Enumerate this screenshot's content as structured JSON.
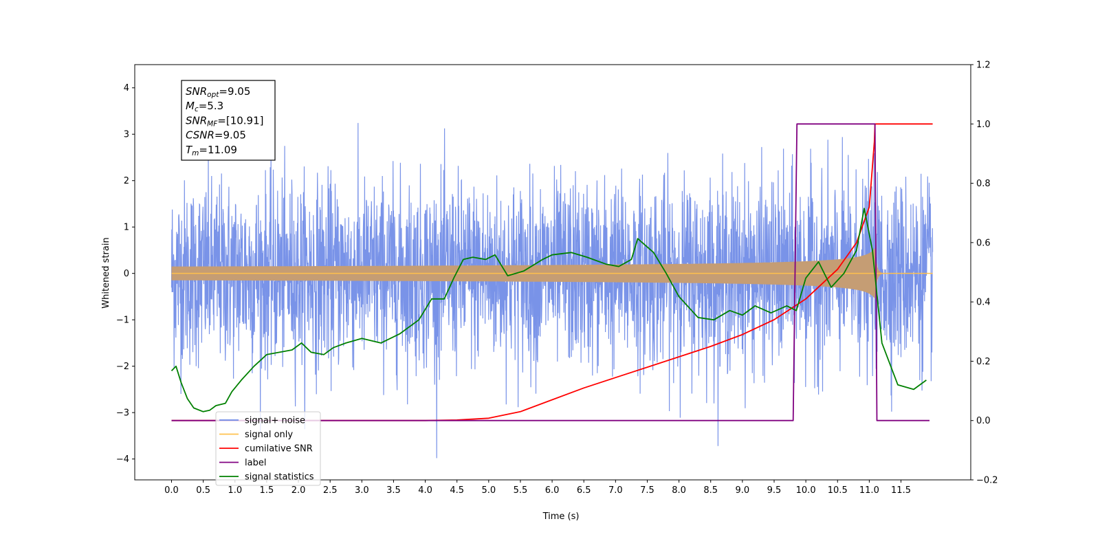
{
  "chart_data": {
    "type": "line",
    "xlabel": "Time (s)",
    "ylabel": "Whitened strain",
    "xlim": [
      -0.58,
      12.6
    ],
    "ylim": [
      -4.45,
      4.5
    ],
    "y2lim": [
      -0.2,
      1.2
    ],
    "x_ticks": [
      0.0,
      0.5,
      1.0,
      1.5,
      2.0,
      2.5,
      3.0,
      3.5,
      4.0,
      4.5,
      5.0,
      5.5,
      6.0,
      6.5,
      7.0,
      7.5,
      8.0,
      8.5,
      9.0,
      9.5,
      10.0,
      10.5,
      11.0,
      11.5
    ],
    "x_tick_labels": [
      "0.0",
      "0.5",
      "1.0",
      "1.5",
      "2.0",
      "2.5",
      "3.0",
      "3.5",
      "4.0",
      "4.5",
      "5.0",
      "5.5",
      "6.0",
      "6.5",
      "7.0",
      "7.5",
      "8.0",
      "8.5",
      "9.0",
      "9.5",
      "10.0",
      "10.5",
      "11.0",
      "11.5"
    ],
    "y_ticks": [
      4,
      3,
      2,
      1,
      0,
      -1,
      -2,
      -3,
      -4
    ],
    "y_tick_labels": [
      "4",
      "3",
      "2",
      "1",
      "0",
      "−1",
      "−2",
      "−3",
      "−4"
    ],
    "y2_ticks": [
      1.2,
      1.0,
      0.8,
      0.6,
      0.4,
      0.2,
      0.0,
      -0.2
    ],
    "y2_tick_labels": [
      "1.2",
      "1.0",
      "0.8",
      "0.6",
      "0.4",
      "0.2",
      "0.0",
      "−0.2"
    ],
    "grid": false,
    "legend_placement": "bottom-left",
    "info_box": {
      "lines": [
        {
          "sym": "SNR",
          "sub": "opt",
          "val": "=9.05"
        },
        {
          "sym": "M",
          "sub": "c",
          "val": "=5.3"
        },
        {
          "sym": "SNR",
          "sub": "MF",
          "val": "=[10.91]"
        },
        {
          "sym": "CSNR",
          "sub": "",
          "val": "=9.05"
        },
        {
          "sym": "T",
          "sub": "m",
          "val": "=11.09"
        }
      ]
    },
    "noise_series": {
      "name": "signal+ noise",
      "color": "#6a87e6",
      "t_start": 0.0,
      "t_end": 12.0,
      "typical_amplitude": 2.2,
      "max": 4.1,
      "min": -4.05
    },
    "signal_envelope": {
      "name": "signal only",
      "color": "#ffc04d",
      "fill_color": "#c59d74",
      "t_start": 0.0,
      "t_merge": 11.09,
      "t_end": 12.0,
      "peak_amplitude": 0.55
    },
    "series": [
      {
        "name": "cumilative SNR",
        "color": "#ff0000",
        "axis": "right",
        "x": [
          0.0,
          3.0,
          4.0,
          4.5,
          5.0,
          5.5,
          6.0,
          6.5,
          7.0,
          7.5,
          8.0,
          8.5,
          9.0,
          9.5,
          10.0,
          10.5,
          10.8,
          11.0,
          11.08,
          11.09,
          12.0
        ],
        "values": [
          0.0,
          0.0,
          0.0,
          0.002,
          0.008,
          0.03,
          0.07,
          0.11,
          0.145,
          0.18,
          0.215,
          0.25,
          0.29,
          0.34,
          0.41,
          0.51,
          0.6,
          0.72,
          0.94,
          1.0,
          1.0
        ]
      },
      {
        "name": "label",
        "color": "#800080",
        "axis": "right",
        "x": [
          0.0,
          9.8,
          9.86,
          11.09,
          11.12,
          11.95
        ],
        "values": [
          0.0,
          0.0,
          1.0,
          1.0,
          0.0,
          0.0
        ]
      },
      {
        "name": "signal statistics",
        "color": "#008000",
        "axis": "left",
        "x": [
          0.0,
          0.07,
          0.15,
          0.25,
          0.35,
          0.5,
          0.6,
          0.7,
          0.85,
          0.95,
          1.1,
          1.3,
          1.5,
          1.7,
          1.9,
          2.05,
          2.2,
          2.4,
          2.55,
          2.75,
          3.0,
          3.3,
          3.6,
          3.9,
          4.1,
          4.3,
          4.45,
          4.6,
          4.75,
          4.95,
          5.1,
          5.3,
          5.55,
          5.85,
          6.0,
          6.3,
          6.55,
          6.85,
          7.05,
          7.25,
          7.35,
          7.6,
          7.8,
          8.0,
          8.3,
          8.55,
          8.8,
          9.0,
          9.2,
          9.45,
          9.7,
          9.85,
          10.0,
          10.2,
          10.4,
          10.6,
          10.8,
          10.92,
          11.05,
          11.2,
          11.45,
          11.7,
          11.9
        ],
        "values": [
          -2.1,
          -2.0,
          -2.35,
          -2.7,
          -2.9,
          -2.98,
          -2.95,
          -2.85,
          -2.8,
          -2.55,
          -2.3,
          -2.0,
          -1.75,
          -1.7,
          -1.65,
          -1.5,
          -1.7,
          -1.75,
          -1.6,
          -1.5,
          -1.4,
          -1.5,
          -1.3,
          -1.0,
          -0.55,
          -0.55,
          -0.1,
          0.3,
          0.35,
          0.3,
          0.4,
          -0.05,
          0.05,
          0.3,
          0.4,
          0.45,
          0.35,
          0.2,
          0.15,
          0.3,
          0.75,
          0.45,
          0.0,
          -0.5,
          -0.95,
          -1.0,
          -0.8,
          -0.9,
          -0.7,
          -0.85,
          -0.7,
          -0.8,
          -0.1,
          0.25,
          -0.3,
          0.0,
          0.5,
          1.4,
          0.5,
          -1.5,
          -2.4,
          -2.5,
          -2.3
        ]
      }
    ],
    "legend": [
      {
        "label": "signal+ noise",
        "color": "#6a87e6"
      },
      {
        "label": "signal only",
        "color": "#ffc04d"
      },
      {
        "label": "cumilative SNR",
        "color": "#ff0000"
      },
      {
        "label": "label",
        "color": "#800080"
      },
      {
        "label": "signal statistics",
        "color": "#008000"
      }
    ]
  }
}
